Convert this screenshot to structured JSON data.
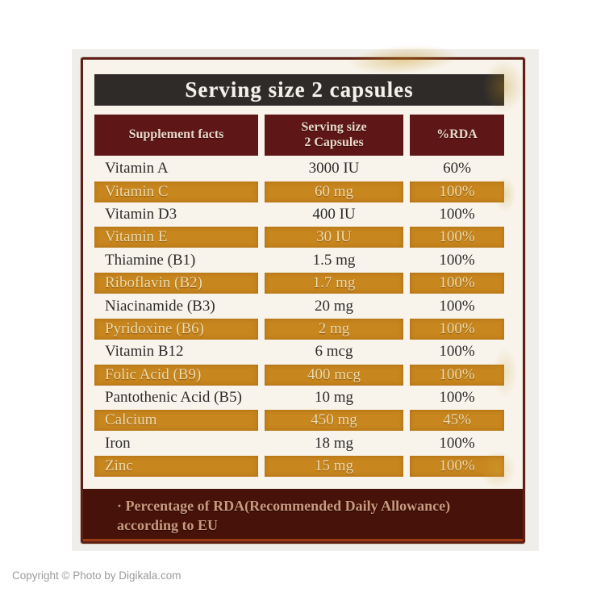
{
  "photo": {
    "copyright": "Copyright © Photo by Digikala.com"
  },
  "label": {
    "title": "Serving size 2 capsules",
    "header": {
      "col1": "Supplement facts",
      "col2_line1": "Serving size",
      "col2_line2": "2 Capsules",
      "col3": "%RDA"
    },
    "rows": [
      {
        "name": "Vitamin A",
        "amount": "3000 IU",
        "rda": "60%",
        "highlight": false
      },
      {
        "name": "Vitamin C",
        "amount": "60 mg",
        "rda": "100%",
        "highlight": true
      },
      {
        "name": "Vitamin D3",
        "amount": "400 IU",
        "rda": "100%",
        "highlight": false
      },
      {
        "name": "Vitamin E",
        "amount": "30 IU",
        "rda": "100%",
        "highlight": true
      },
      {
        "name": "Thiamine (B1)",
        "amount": "1.5 mg",
        "rda": "100%",
        "highlight": false
      },
      {
        "name": "Riboflavin (B2)",
        "amount": "1.7 mg",
        "rda": "100%",
        "highlight": true
      },
      {
        "name": "Niacinamide (B3)",
        "amount": "20 mg",
        "rda": "100%",
        "highlight": false
      },
      {
        "name": "Pyridoxine (B6)",
        "amount": "2 mg",
        "rda": "100%",
        "highlight": true
      },
      {
        "name": "Vitamin B12",
        "amount": "6 mcg",
        "rda": "100%",
        "highlight": false
      },
      {
        "name": "Folic Acid (B9)",
        "amount": "400 mcg",
        "rda": "100%",
        "highlight": true
      },
      {
        "name": "Pantothenic Acid (B5)",
        "amount": "10 mg",
        "rda": "100%",
        "highlight": false
      },
      {
        "name": "Calcium",
        "amount": "450 mg",
        "rda": "45%",
        "highlight": true
      },
      {
        "name": "Iron",
        "amount": "18 mg",
        "rda": "100%",
        "highlight": false
      },
      {
        "name": "Zinc",
        "amount": "15 mg",
        "rda": "100%",
        "highlight": true
      }
    ],
    "footnote": {
      "line1": "· Percentage of RDA(Recommended Daily Allowance)",
      "line2": "according to EU"
    },
    "colors": {
      "frame_border": "#5e2014",
      "title_bar_bg": "#2e2b29",
      "table_header_bg": "#5e1616",
      "gold_row_bg": "#c8861e",
      "footnote_bg": "#471209",
      "label_bg": "#f8f4ec"
    }
  }
}
